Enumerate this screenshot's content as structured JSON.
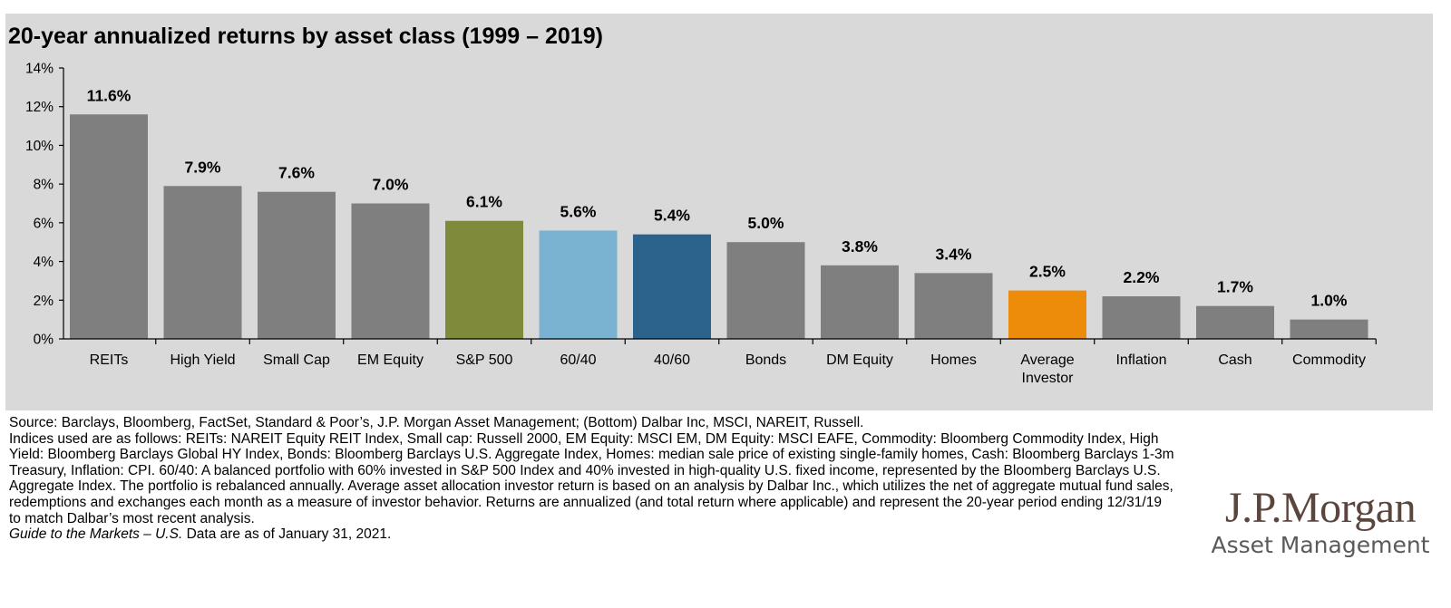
{
  "chart_data": {
    "type": "bar",
    "title": "20-year annualized returns by asset class (1999 – 2019)",
    "categories": [
      "REITs",
      "High Yield",
      "Small Cap",
      "EM Equity",
      "S&P 500",
      "60/40",
      "40/60",
      "Bonds",
      "DM Equity",
      "Homes",
      "Average Investor",
      "Inflation",
      "Cash",
      "Commodity"
    ],
    "category_lines": [
      [
        "REITs"
      ],
      [
        "High Yield"
      ],
      [
        "Small Cap"
      ],
      [
        "EM Equity"
      ],
      [
        "S&P 500"
      ],
      [
        "60/40"
      ],
      [
        "40/60"
      ],
      [
        "Bonds"
      ],
      [
        "DM Equity"
      ],
      [
        "Homes"
      ],
      [
        "Average",
        "Investor"
      ],
      [
        "Inflation"
      ],
      [
        "Cash"
      ],
      [
        "Commodity"
      ]
    ],
    "values": [
      11.6,
      7.9,
      7.6,
      7.0,
      6.1,
      5.6,
      5.4,
      5.0,
      3.8,
      3.4,
      2.5,
      2.2,
      1.7,
      1.0
    ],
    "value_labels": [
      "11.6%",
      "7.9%",
      "7.6%",
      "7.0%",
      "6.1%",
      "5.6%",
      "5.4%",
      "5.0%",
      "3.8%",
      "3.4%",
      "2.5%",
      "2.2%",
      "1.7%",
      "1.0%"
    ],
    "colors": [
      "#7f7f7f",
      "#7f7f7f",
      "#7f7f7f",
      "#7f7f7f",
      "#7f8a3a",
      "#7ab3d1",
      "#2b638c",
      "#7f7f7f",
      "#7f7f7f",
      "#7f7f7f",
      "#ed8b0a",
      "#7f7f7f",
      "#7f7f7f",
      "#7f7f7f"
    ],
    "yticks": [
      0,
      2,
      4,
      6,
      8,
      10,
      12,
      14
    ],
    "ytick_labels": [
      "0%",
      "2%",
      "4%",
      "6%",
      "8%",
      "10%",
      "12%",
      "14%"
    ],
    "ylim": [
      0,
      14
    ],
    "xlabel": "",
    "ylabel": "",
    "grid": false,
    "legend": false
  },
  "footnote": {
    "lines": [
      "Source: Barclays, Bloomberg, FactSet, Standard & Poor’s, J.P. Morgan Asset Management; (Bottom) Dalbar Inc, MSCI, NAREIT, Russell.",
      "Indices used are as follows: REITs: NAREIT Equity REIT Index, Small cap: Russell 2000, EM Equity: MSCI EM, DM Equity: MSCI EAFE, Commodity: Bloomberg Commodity Index, High Yield: Bloomberg Barclays Global HY Index, Bonds: Bloomberg Barclays U.S. Aggregate Index, Homes: median sale price of existing single-family homes, Cash: Bloomberg Barclays 1-3m Treasury, Inflation: CPI. 60/40: A balanced portfolio with 60% invested in S&P 500 Index and 40% invested in high-quality U.S. fixed income, represented by the Bloomberg Barclays U.S. Aggregate Index. The portfolio is rebalanced annually. Average asset allocation investor return is based on an analysis by Dalbar Inc., which utilizes the net of aggregate mutual fund sales, redemptions and exchanges each month as a measure of investor behavior. Returns are annualized (and total return where applicable) and represent the 20-year period ending 12/31/19 to match Dalbar’s most recent analysis."
    ],
    "guide_title": "Guide to the Markets – U.S.",
    "guide_date": " Data are as of January 31, 2021."
  },
  "logo": {
    "main": "J.P.Morgan",
    "sub": "Asset Management"
  }
}
